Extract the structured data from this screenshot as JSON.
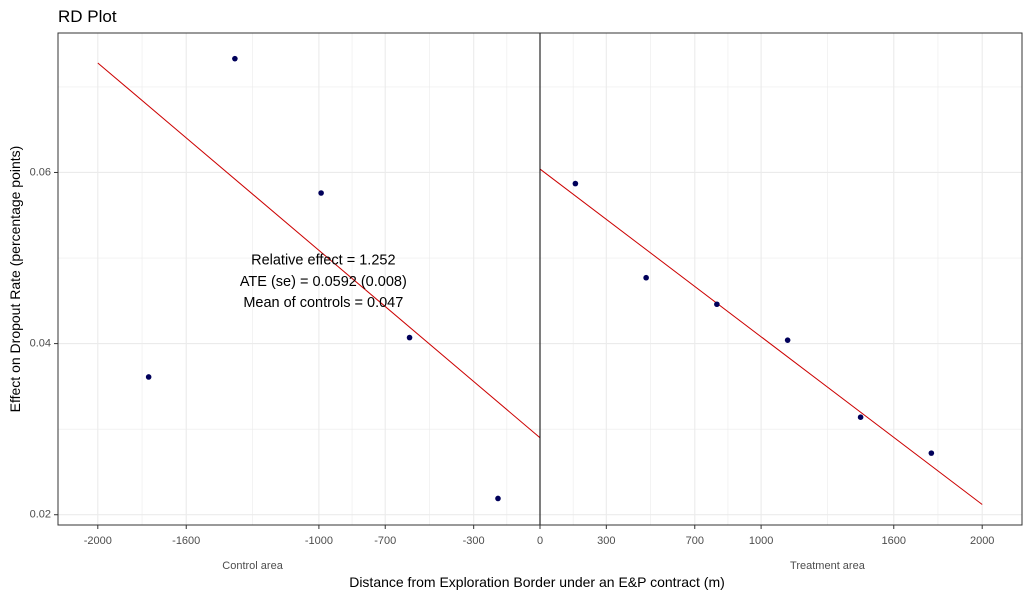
{
  "chart_data": {
    "type": "scatter",
    "title": "RD Plot",
    "xlabel": "Distance from Exploration Border under an E&P contract (m)",
    "ylabel": "Effect on Dropout Rate (percentage points)",
    "xlim": [
      -2180,
      2180
    ],
    "ylim": [
      0.0188,
      0.0763
    ],
    "x_ticks": [
      -2000,
      -1600,
      -1000,
      -700,
      -300,
      0,
      300,
      700,
      1000,
      1600,
      2000
    ],
    "x_tick_labels": [
      "-2000",
      "-1600",
      "-1000",
      "-700",
      "-300",
      "0",
      "300",
      "700",
      "1000",
      "1600",
      "2000"
    ],
    "x_minor_grid": [
      -1800,
      -1300,
      -850,
      -500,
      -150,
      150,
      500,
      850,
      1300,
      1800
    ],
    "y_ticks": [
      0.02,
      0.04,
      0.06
    ],
    "y_tick_labels": [
      "0.02",
      "0.04",
      "0.06"
    ],
    "y_minor_grid": [
      0.03,
      0.05,
      0.07
    ],
    "grid": true,
    "cutoff": 0,
    "group_labels": [
      {
        "text": "Control area",
        "x": -1300
      },
      {
        "text": "Treatment area",
        "x": 1300
      }
    ],
    "points": [
      {
        "x": -1770,
        "y": 0.0361
      },
      {
        "x": -1380,
        "y": 0.0733
      },
      {
        "x": -990,
        "y": 0.0576
      },
      {
        "x": -590,
        "y": 0.0407
      },
      {
        "x": -190,
        "y": 0.0219
      },
      {
        "x": 160,
        "y": 0.0587
      },
      {
        "x": 480,
        "y": 0.0477
      },
      {
        "x": 800,
        "y": 0.0446
      },
      {
        "x": 1120,
        "y": 0.0404
      },
      {
        "x": 1450,
        "y": 0.0314
      },
      {
        "x": 1770,
        "y": 0.0272
      }
    ],
    "fit_lines": [
      {
        "x": [
          -2000,
          0
        ],
        "y": [
          0.0728,
          0.029
        ]
      },
      {
        "x": [
          0,
          2000
        ],
        "y": [
          0.0604,
          0.0212
        ]
      }
    ],
    "annotation": {
      "lines": [
        "Relative effect = 1.252",
        "ATE (se) = 0.0592 (0.008)",
        "Mean of controls = 0.047"
      ],
      "x": -980,
      "y": [
        0.0497,
        0.0472,
        0.0447
      ]
    },
    "colors": {
      "points": "#00005a",
      "fit_line": "#cc0000",
      "cutoff_line": "#000000",
      "grid": "#ebebeb",
      "panel_border": "#333333"
    }
  }
}
